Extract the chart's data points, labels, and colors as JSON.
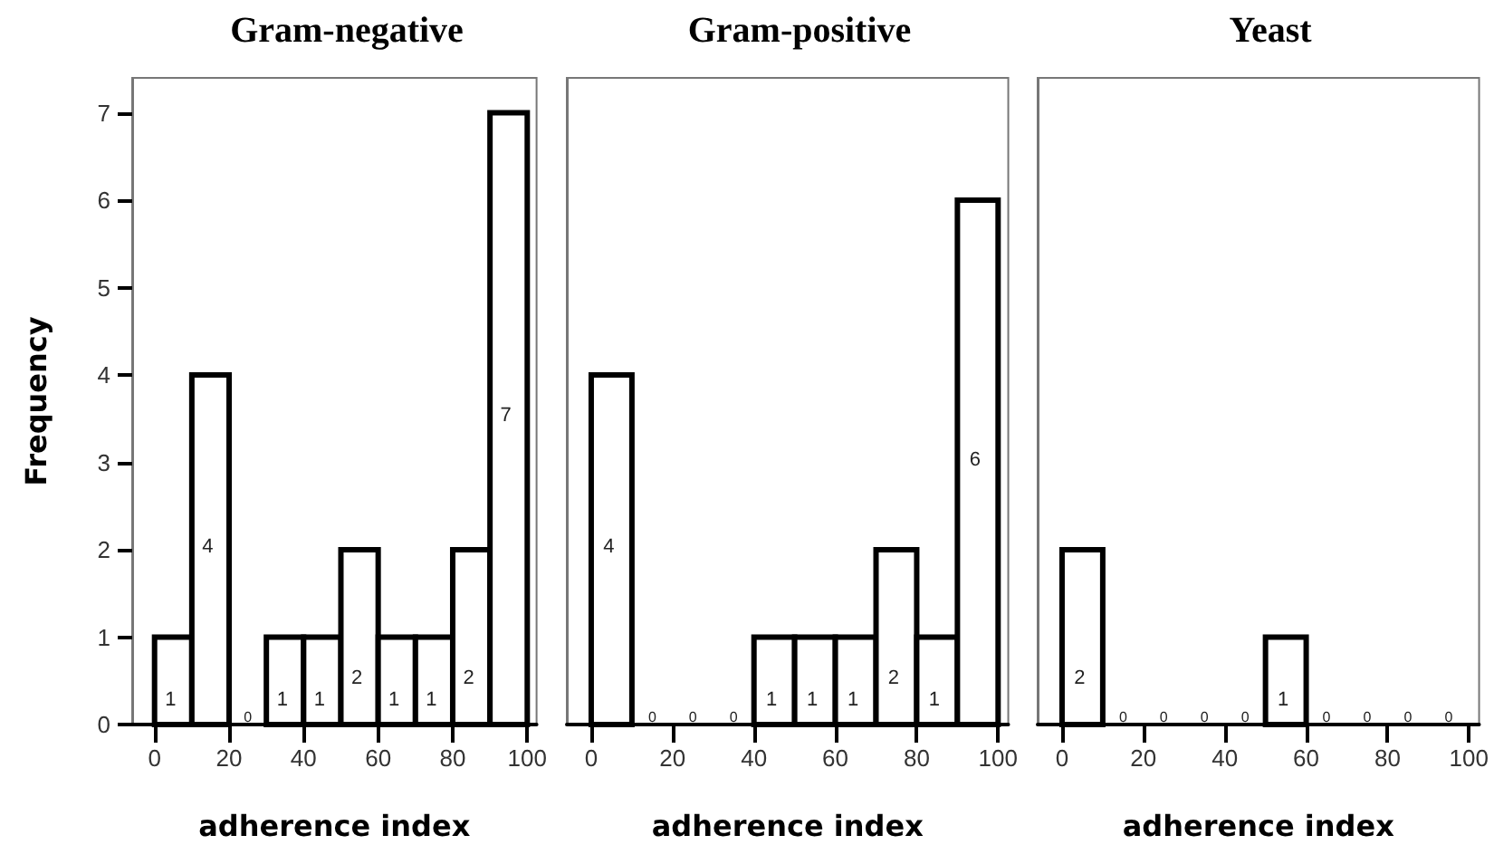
{
  "chart_data": [
    {
      "type": "histogram",
      "title": "Gram-negative",
      "xlabel": "adherence index",
      "ylabel": "Frequency",
      "bins": [
        0,
        10,
        20,
        30,
        40,
        50,
        60,
        70,
        80,
        90,
        100
      ],
      "values": [
        1,
        4,
        0,
        1,
        1,
        2,
        1,
        1,
        2,
        7
      ],
      "color": "#ffffff",
      "xlim": [
        -6,
        102.5
      ],
      "xticks": [
        0,
        20,
        40,
        60,
        80,
        100
      ],
      "ylim": [
        0,
        7.4
      ],
      "yticks": [
        0,
        1,
        2,
        3,
        4,
        5,
        6,
        7
      ],
      "data_labels": true,
      "grid": false
    },
    {
      "type": "histogram",
      "title": "Gram-positive",
      "xlabel": "adherence index",
      "bins": [
        0,
        10,
        20,
        30,
        40,
        50,
        60,
        70,
        80,
        90,
        100
      ],
      "values": [
        4,
        0,
        0,
        0,
        1,
        1,
        1,
        2,
        1,
        6
      ],
      "color": "#ffffff",
      "xlim": [
        -6,
        102.5
      ],
      "xticks": [
        0,
        20,
        40,
        60,
        80,
        100
      ],
      "ylim": [
        0,
        7.4
      ],
      "yticks": [
        0,
        1,
        2,
        3,
        4,
        5,
        6,
        7
      ],
      "tick_labels": "x",
      "data_labels": true,
      "grid": false
    },
    {
      "type": "histogram",
      "title": "Yeast",
      "xlabel": "adherence index",
      "bins": [
        0,
        10,
        20,
        30,
        40,
        50,
        60,
        70,
        80,
        90,
        100
      ],
      "values": [
        2,
        0,
        0,
        0,
        0,
        1,
        0,
        0,
        0,
        0
      ],
      "color": "#ffffff",
      "xlim": [
        -6,
        102.5
      ],
      "xticks": [
        0,
        20,
        40,
        60,
        80,
        100
      ],
      "ylim": [
        0,
        7.4
      ],
      "yticks": [
        0,
        1,
        2,
        3,
        4,
        5,
        6,
        7
      ],
      "tick_labels": "x",
      "data_labels": true,
      "grid": false
    }
  ]
}
